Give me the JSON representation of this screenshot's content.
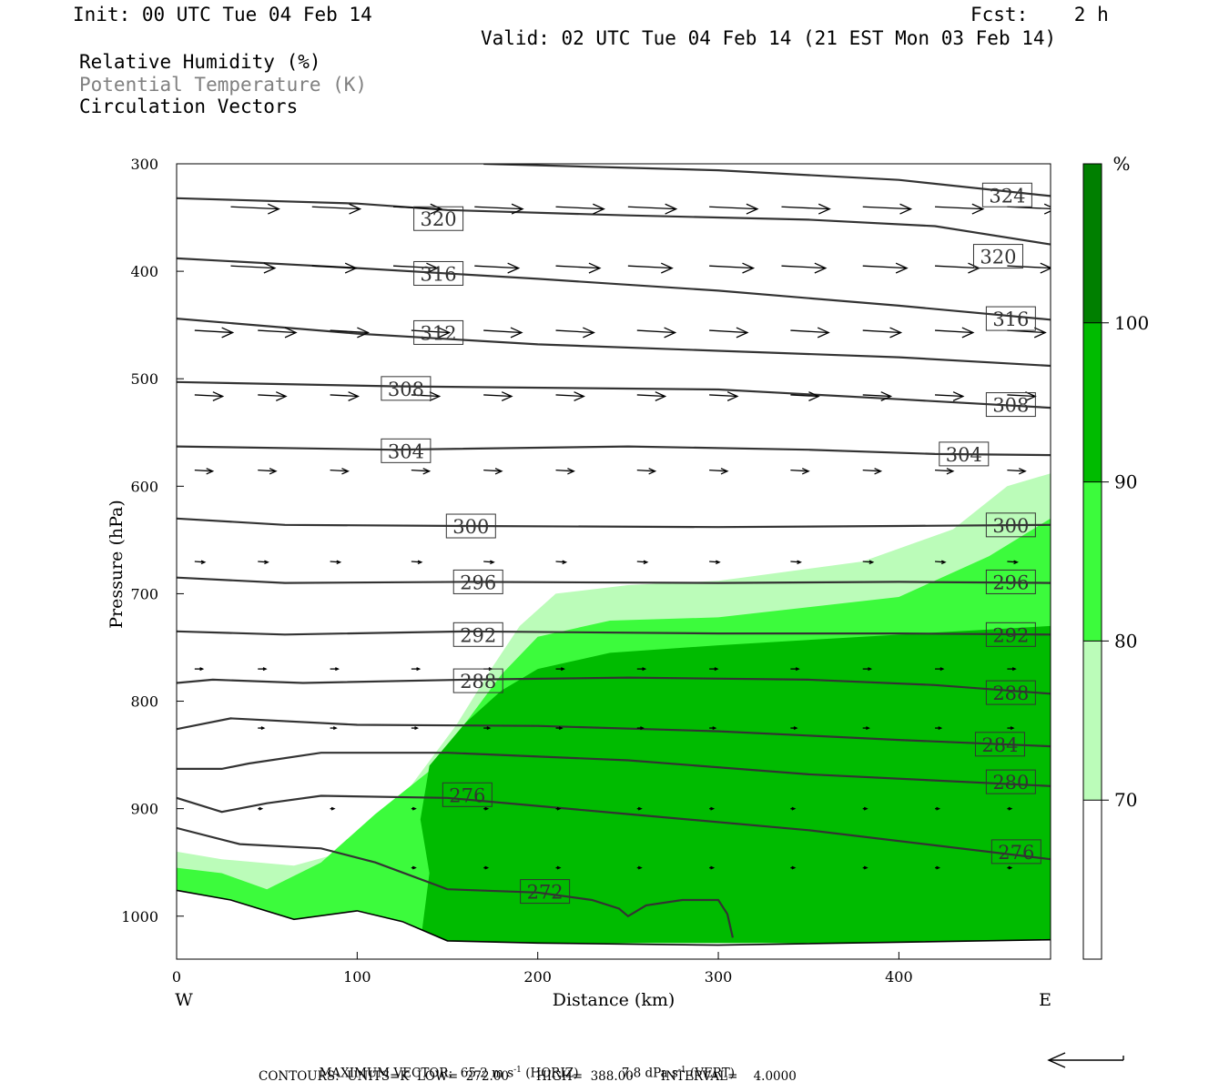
{
  "header": {
    "init": "Init: 00 UTC Tue 04 Feb 14",
    "fcst": "Fcst:    2 h",
    "valid": "Valid: 02 UTC Tue 04 Feb 14 (21 EST Mon 03 Feb 14)",
    "fields": [
      "Relative Humidity (%)",
      "Potential Temperature (K)",
      "Circulation Vectors"
    ]
  },
  "chart_data": {
    "type": "cross-section",
    "xlabel": "Distance (km)",
    "ylabel": "Pressure (hPa)",
    "xlim": [
      0,
      484
    ],
    "ylim": [
      1040,
      300
    ],
    "x_ticks": [
      0,
      100,
      200,
      300,
      400
    ],
    "y_ticks": [
      300,
      400,
      500,
      600,
      700,
      800,
      900,
      1000
    ],
    "x_end_labels": {
      "left": "W",
      "right": "E"
    },
    "colorbar": {
      "unit": "%",
      "levels": [
        70,
        80,
        90,
        100
      ],
      "colors": [
        "#ffffff",
        "#bbfcb9",
        "#3cfb3c",
        "#00bb00",
        "#007f00"
      ]
    },
    "rh_areas": [
      {
        "level": 70,
        "color": "#bbfcb9",
        "points": [
          [
            0,
            940
          ],
          [
            25,
            947
          ],
          [
            65,
            953
          ],
          [
            100,
            937
          ],
          [
            130,
            878
          ],
          [
            155,
            822
          ],
          [
            175,
            768
          ],
          [
            190,
            730
          ],
          [
            210,
            700
          ],
          [
            250,
            692
          ],
          [
            300,
            688
          ],
          [
            380,
            670
          ],
          [
            430,
            640
          ],
          [
            460,
            600
          ],
          [
            484,
            588
          ],
          [
            484,
            1025
          ],
          [
            0,
            1025
          ]
        ]
      },
      {
        "level": 80,
        "color": "#3cfb3c",
        "points": [
          [
            0,
            955
          ],
          [
            25,
            960
          ],
          [
            50,
            975
          ],
          [
            80,
            950
          ],
          [
            110,
            905
          ],
          [
            140,
            865
          ],
          [
            160,
            820
          ],
          [
            180,
            775
          ],
          [
            200,
            740
          ],
          [
            240,
            725
          ],
          [
            300,
            722
          ],
          [
            400,
            703
          ],
          [
            450,
            665
          ],
          [
            484,
            630
          ],
          [
            484,
            1025
          ],
          [
            0,
            1025
          ]
        ]
      },
      {
        "level": 90,
        "color": "#00bb00",
        "points": [
          [
            135,
            1025
          ],
          [
            140,
            960
          ],
          [
            135,
            910
          ],
          [
            140,
            860
          ],
          [
            160,
            820
          ],
          [
            180,
            790
          ],
          [
            200,
            770
          ],
          [
            240,
            755
          ],
          [
            300,
            748
          ],
          [
            380,
            740
          ],
          [
            484,
            730
          ],
          [
            484,
            1025
          ]
        ]
      }
    ],
    "theta_contours": [
      {
        "value": 324,
        "points": [
          [
            170,
            300
          ],
          [
            300,
            306
          ],
          [
            400,
            315
          ],
          [
            484,
            330
          ]
        ],
        "labels": [
          [
            460,
            329
          ]
        ]
      },
      {
        "value": 320,
        "points": [
          [
            0,
            332
          ],
          [
            100,
            337
          ],
          [
            150,
            343
          ],
          [
            250,
            348
          ],
          [
            350,
            352
          ],
          [
            420,
            358
          ],
          [
            484,
            375
          ]
        ],
        "labels": [
          [
            145,
            351
          ],
          [
            455,
            386
          ]
        ]
      },
      {
        "value": 316,
        "points": [
          [
            0,
            388
          ],
          [
            100,
            397
          ],
          [
            200,
            407
          ],
          [
            300,
            418
          ],
          [
            400,
            432
          ],
          [
            484,
            445
          ]
        ],
        "labels": [
          [
            145,
            402
          ],
          [
            462,
            444
          ]
        ]
      },
      {
        "value": 312,
        "points": [
          [
            0,
            444
          ],
          [
            100,
            458
          ],
          [
            200,
            468
          ],
          [
            300,
            474
          ],
          [
            400,
            480
          ],
          [
            484,
            488
          ]
        ],
        "labels": [
          [
            145,
            457
          ]
        ]
      },
      {
        "value": 308,
        "points": [
          [
            0,
            503
          ],
          [
            120,
            507
          ],
          [
            300,
            510
          ],
          [
            400,
            519
          ],
          [
            484,
            527
          ]
        ],
        "labels": [
          [
            127,
            509
          ],
          [
            462,
            524
          ]
        ]
      },
      {
        "value": 304,
        "points": [
          [
            0,
            563
          ],
          [
            120,
            566
          ],
          [
            250,
            563
          ],
          [
            350,
            566
          ],
          [
            420,
            570
          ],
          [
            484,
            571
          ]
        ],
        "labels": [
          [
            127,
            567
          ],
          [
            436,
            570
          ]
        ]
      },
      {
        "value": 300,
        "points": [
          [
            0,
            630
          ],
          [
            60,
            636
          ],
          [
            160,
            637
          ],
          [
            300,
            638
          ],
          [
            400,
            637
          ],
          [
            484,
            636
          ]
        ],
        "labels": [
          [
            163,
            637
          ],
          [
            462,
            636
          ]
        ]
      },
      {
        "value": 296,
        "points": [
          [
            0,
            685
          ],
          [
            60,
            690
          ],
          [
            160,
            689
          ],
          [
            300,
            690
          ],
          [
            400,
            689
          ],
          [
            484,
            690
          ]
        ],
        "labels": [
          [
            167,
            689
          ],
          [
            462,
            689
          ]
        ]
      },
      {
        "value": 292,
        "points": [
          [
            0,
            735
          ],
          [
            60,
            738
          ],
          [
            160,
            735
          ],
          [
            300,
            737
          ],
          [
            400,
            737
          ],
          [
            484,
            738
          ]
        ],
        "labels": [
          [
            167,
            738
          ],
          [
            462,
            738
          ]
        ]
      },
      {
        "value": 288,
        "points": [
          [
            0,
            783
          ],
          [
            20,
            780
          ],
          [
            70,
            783
          ],
          [
            160,
            780
          ],
          [
            250,
            778
          ],
          [
            350,
            780
          ],
          [
            420,
            785
          ],
          [
            484,
            793
          ]
        ],
        "labels": [
          [
            167,
            781
          ],
          [
            462,
            792
          ]
        ]
      },
      {
        "value": 284,
        "points": [
          [
            0,
            826
          ],
          [
            30,
            816
          ],
          [
            100,
            822
          ],
          [
            200,
            823
          ],
          [
            300,
            828
          ],
          [
            400,
            836
          ],
          [
            484,
            842
          ]
        ],
        "labels": [
          [
            456,
            840
          ]
        ]
      },
      {
        "value": 280,
        "points": [
          [
            0,
            863
          ],
          [
            25,
            863
          ],
          [
            40,
            858
          ],
          [
            80,
            848
          ],
          [
            150,
            848
          ],
          [
            250,
            855
          ],
          [
            350,
            868
          ],
          [
            484,
            879
          ]
        ],
        "labels": [
          [
            462,
            875
          ]
        ]
      },
      {
        "value": 276,
        "points": [
          [
            0,
            890
          ],
          [
            25,
            903
          ],
          [
            50,
            895
          ],
          [
            80,
            888
          ],
          [
            150,
            890
          ],
          [
            250,
            905
          ],
          [
            350,
            920
          ],
          [
            484,
            947
          ]
        ],
        "labels": [
          [
            161,
            887
          ],
          [
            465,
            940
          ]
        ]
      },
      {
        "value": 272,
        "points": [
          [
            0,
            918
          ],
          [
            35,
            933
          ],
          [
            80,
            937
          ],
          [
            110,
            950
          ],
          [
            150,
            975
          ],
          [
            200,
            978
          ],
          [
            230,
            985
          ],
          [
            245,
            993
          ],
          [
            250,
            1000
          ],
          [
            260,
            990
          ],
          [
            280,
            985
          ],
          [
            300,
            985
          ],
          [
            305,
            998
          ],
          [
            308,
            1020
          ]
        ],
        "labels": [
          [
            204,
            977
          ]
        ]
      }
    ],
    "terrain_pressure": [
      [
        0,
        976
      ],
      [
        30,
        985
      ],
      [
        65,
        1003
      ],
      [
        100,
        995
      ],
      [
        125,
        1005
      ],
      [
        150,
        1023
      ],
      [
        200,
        1025
      ],
      [
        300,
        1027
      ],
      [
        484,
        1022
      ]
    ],
    "vector_rows": [
      {
        "p": 340,
        "x": [
          30,
          75,
          120,
          165,
          210,
          250,
          295,
          335,
          380,
          420,
          460
        ],
        "dx": 24,
        "dy": -0.6
      },
      {
        "p": 395,
        "x": [
          30,
          75,
          120,
          165,
          210,
          250,
          295,
          335,
          380,
          420,
          460
        ],
        "dx": 22,
        "dy": -0.6
      },
      {
        "p": 455,
        "x": [
          10,
          45,
          85,
          130,
          170,
          210,
          255,
          295,
          340,
          380,
          420,
          460
        ],
        "dx": 19,
        "dy": -0.6
      },
      {
        "p": 515,
        "x": [
          10,
          45,
          85,
          130,
          170,
          210,
          255,
          295,
          340,
          380,
          420,
          460
        ],
        "dx": 14,
        "dy": -0.4
      },
      {
        "p": 585,
        "x": [
          10,
          45,
          85,
          130,
          170,
          210,
          255,
          295,
          340,
          380,
          420,
          460
        ],
        "dx": 9,
        "dy": -0.3
      },
      {
        "p": 670,
        "x": [
          10,
          45,
          85,
          130,
          170,
          210,
          255,
          295,
          340,
          380,
          420,
          460
        ],
        "dx": 5,
        "dy": -0.2
      },
      {
        "p": 770,
        "x": [
          10,
          45,
          85,
          130,
          170,
          210,
          255,
          295,
          340,
          380,
          420,
          460
        ],
        "dx": 4,
        "dy": 0
      },
      {
        "p": 825,
        "x": [
          45,
          85,
          130,
          170,
          210,
          255,
          295,
          340,
          380,
          420,
          460
        ],
        "dx": 3,
        "dy": 0
      },
      {
        "p": 900,
        "x": [
          45,
          85,
          130,
          170,
          210,
          255,
          295,
          340,
          380,
          420,
          460
        ],
        "dx": 2,
        "dy": 0
      },
      {
        "p": 955,
        "x": [
          130,
          170,
          210,
          255,
          295,
          340,
          380,
          420,
          460
        ],
        "dx": 2,
        "dy": 0
      }
    ]
  },
  "footer": {
    "max_vector_label": "MAXIMUM VECTOR:",
    "horiz_value": "65.2 m s",
    "horiz_exp": "-1",
    "horiz_tag": "(HORIZ)",
    "vert_value": "7.8 dPa s",
    "vert_exp": "-1",
    "vert_tag": "(VERT)",
    "contours": "CONTOURS:  UNITS=K  LOW=  272.00       HIGH=  388.00       INTERVAL=    4.0000"
  }
}
